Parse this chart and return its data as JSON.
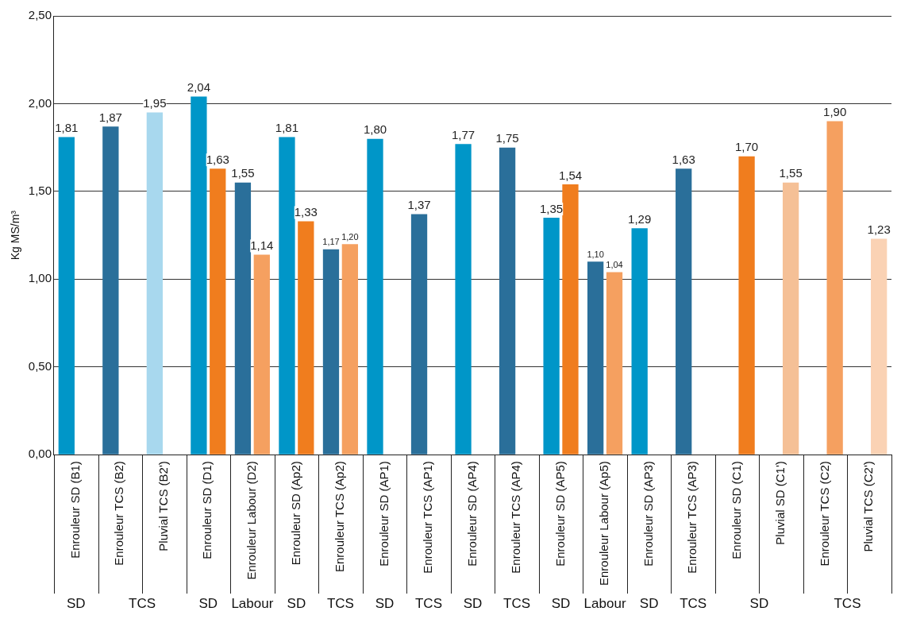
{
  "chart_data": {
    "type": "bar",
    "ylabel": "Kg MS/m³",
    "categories": [
      "Enrouleur SD (B1)",
      "Enrouleur TCS (B2)",
      "Pluvial TCS (B2')",
      "Enrouleur SD (D1)",
      "Enrouleur Labour (D2)",
      "Enrouleur SD (Ap2)",
      "Enrouleur TCS (Ap2)",
      "Enrouleur SD (AP1)",
      "Enrouleur TCS (AP1)",
      "Enrouleur SD (AP4)",
      "Enrouleur TCS (AP4)",
      "Enrouleur SD (AP5)",
      "Enrouleur Labour (Ap5)",
      "Enrouleur SD (AP3)",
      "Enrouleur TCS (AP3)",
      "Enrouleur SD (C1)",
      "Pluvial SD (C1')",
      "Enrouleur TCS (C2)",
      "Pluvial TCS (C2')"
    ],
    "series": [
      {
        "colors": [
          "#0096c8",
          "#2a6f9a",
          "#a8d8ee",
          "#0096c8",
          "#2a6f9a",
          "#0096c8",
          "#2a6f9a",
          "#0096c8",
          "#2a6f9a",
          "#0096c8",
          "#2a6f9a",
          "#0096c8",
          "#2a6f9a",
          "#0096c8",
          "#2a6f9a",
          "#0096c8",
          "#0096c8",
          "#0096c8",
          "#0096c8"
        ],
        "values": [
          1.81,
          1.87,
          1.95,
          2.04,
          1.55,
          1.81,
          1.17,
          1.8,
          1.37,
          1.77,
          1.75,
          1.35,
          1.1,
          1.29,
          1.63,
          null,
          null,
          null,
          null
        ],
        "value_labels": [
          "1,81",
          "1,87",
          "1,95",
          "2,04",
          "1,55",
          "1,81",
          "1,17",
          "1,80",
          "1,37",
          "1,77",
          "1,75",
          "1,35",
          "1,10",
          "1,29",
          "1,63",
          null,
          null,
          null,
          null
        ]
      },
      {
        "colors": [
          "#f07d1e",
          "#f07d1e",
          "#f07d1e",
          "#f07d1e",
          "#f5a060",
          "#f07d1e",
          "#f5a060",
          "#f07d1e",
          "#f07d1e",
          "#f07d1e",
          "#f07d1e",
          "#f07d1e",
          "#f5a060",
          "#f07d1e",
          "#f07d1e",
          "#f07d1e",
          "#f5c096",
          "#f5a060",
          "#fad2b4"
        ],
        "values": [
          null,
          null,
          null,
          1.63,
          1.14,
          1.33,
          1.2,
          null,
          null,
          null,
          null,
          1.54,
          1.04,
          null,
          null,
          1.7,
          1.55,
          1.9,
          1.23
        ],
        "value_labels": [
          null,
          null,
          null,
          "1,63",
          "1,14",
          "1,33",
          "1,20",
          null,
          null,
          null,
          null,
          "1,54",
          "1,04",
          null,
          null,
          "1,70",
          "1,55",
          "1,90",
          "1,23"
        ]
      }
    ],
    "ylim": [
      0,
      2.5
    ],
    "yticks": [
      {
        "value": 0,
        "label": "0,00"
      },
      {
        "value": 0.5,
        "label": "0,50"
      },
      {
        "value": 1,
        "label": "1,00"
      },
      {
        "value": 1.5,
        "label": "1,50"
      },
      {
        "value": 2,
        "label": "2,00"
      },
      {
        "value": 2.5,
        "label": "2,50"
      }
    ],
    "grid": "y",
    "legend": false,
    "annotations": [
      "SD",
      "TCS",
      "SD",
      "Labour",
      "SD",
      "TCS",
      "SD",
      "TCS",
      "SD",
      "TCS",
      "SD",
      "Labour",
      "SD",
      "TCS",
      "SD",
      "TCS"
    ]
  }
}
